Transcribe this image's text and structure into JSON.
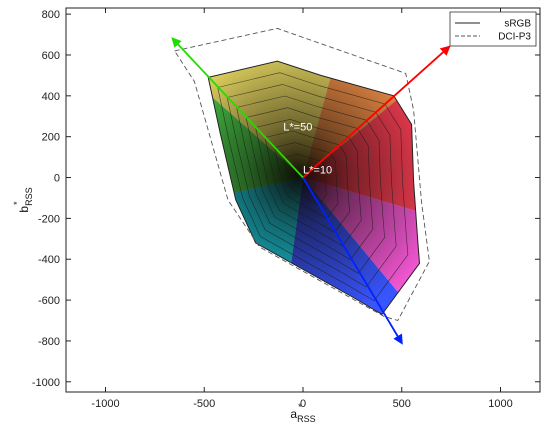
{
  "chart_data": {
    "type": "line",
    "title": "",
    "xlabel": {
      "base": "a",
      "sup": "*",
      "sub": "RSS"
    },
    "ylabel": {
      "base": "b",
      "sup": "*",
      "sub": "RSS"
    },
    "xlim": [
      -1200,
      1200
    ],
    "ylim": [
      -1050,
      830
    ],
    "xticks": [
      -1000,
      -500,
      0,
      500,
      1000
    ],
    "yticks": [
      -1000,
      -800,
      -600,
      -400,
      -200,
      0,
      200,
      400,
      600,
      800
    ],
    "grid": false,
    "legend_position": "top-right",
    "series": [
      {
        "name": "sRGB",
        "style": "solid",
        "points": [
          [
            -480,
            490
          ],
          [
            -130,
            570
          ],
          [
            90,
            500
          ],
          [
            460,
            400
          ],
          [
            550,
            260
          ],
          [
            560,
            -20
          ],
          [
            580,
            -300
          ],
          [
            590,
            -420
          ],
          [
            400,
            -670
          ],
          [
            260,
            -590
          ],
          [
            -240,
            -320
          ],
          [
            -340,
            -110
          ],
          [
            -420,
            220
          ],
          [
            -480,
            490
          ]
        ]
      },
      {
        "name": "DCI-P3",
        "style": "dashed",
        "points": [
          [
            -650,
            620
          ],
          [
            -130,
            730
          ],
          [
            520,
            510
          ],
          [
            560,
            330
          ],
          [
            600,
            -120
          ],
          [
            640,
            -410
          ],
          [
            480,
            -700
          ],
          [
            410,
            -680
          ],
          [
            -220,
            -340
          ],
          [
            -380,
            -110
          ],
          [
            -550,
            470
          ],
          [
            -650,
            620
          ]
        ]
      }
    ],
    "primary_axes": [
      {
        "name": "red",
        "color": "#ff0000",
        "from": [
          0,
          0
        ],
        "to": [
          740,
          640
        ]
      },
      {
        "name": "green",
        "color": "#22dd00",
        "from": [
          0,
          0
        ],
        "to": [
          -660,
          680
        ]
      },
      {
        "name": "blue",
        "color": "#0022ff",
        "from": [
          0,
          0
        ],
        "to": [
          500,
          -810
        ]
      }
    ],
    "lightness_contours": [
      10,
      20,
      30,
      40,
      50,
      60,
      70,
      80,
      90
    ],
    "annotations": [
      {
        "text": "L*=50",
        "x": -100,
        "y": 230
      },
      {
        "text": "L*=10",
        "x": 0,
        "y": 20
      }
    ],
    "gamut_colors": {
      "red": "#ff2a44",
      "green": "#37d23a",
      "blue": "#2442ff",
      "yellow": "#f6e45a",
      "orange": "#ff8c3a",
      "cyan": "#00d8f0",
      "magenta": "#ee44cc",
      "dark": "#0a0600"
    }
  }
}
